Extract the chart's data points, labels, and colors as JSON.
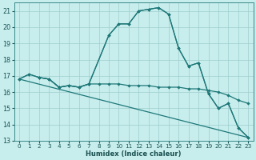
{
  "xlabel": "Humidex (Indice chaleur)",
  "xlim": [
    -0.5,
    23.5
  ],
  "ylim": [
    13,
    21.5
  ],
  "yticks": [
    13,
    14,
    15,
    16,
    17,
    18,
    19,
    20,
    21
  ],
  "xticks": [
    0,
    1,
    2,
    3,
    4,
    5,
    6,
    7,
    8,
    9,
    10,
    11,
    12,
    13,
    14,
    15,
    16,
    17,
    18,
    19,
    20,
    21,
    22,
    23
  ],
  "background_color": "#c8eded",
  "grid_color": "#9ecece",
  "line_color": "#1e7878",
  "series": [
    {
      "x": [
        0,
        1,
        2,
        3,
        4,
        5,
        6,
        7,
        9,
        10,
        11,
        12,
        13,
        14,
        15,
        16,
        17,
        18,
        19,
        20,
        21,
        22,
        23
      ],
      "y": [
        16.8,
        17.1,
        16.9,
        16.8,
        16.3,
        16.4,
        16.3,
        16.5,
        19.5,
        20.2,
        20.2,
        21.0,
        21.1,
        21.2,
        20.8,
        18.7,
        17.6,
        17.8,
        15.9,
        15.0,
        15.3,
        13.8,
        13.2
      ],
      "marker": true
    },
    {
      "x": [
        0,
        1,
        2,
        3,
        4,
        5,
        6,
        7,
        8,
        9,
        10,
        11,
        12,
        13,
        14,
        15,
        16,
        17,
        18,
        19,
        20,
        21,
        22,
        23
      ],
      "y": [
        16.8,
        17.1,
        16.9,
        16.8,
        16.3,
        16.4,
        16.3,
        16.5,
        16.5,
        16.5,
        16.5,
        16.4,
        16.4,
        16.4,
        16.3,
        16.3,
        16.3,
        16.2,
        16.2,
        16.1,
        16.0,
        15.8,
        15.5,
        15.3
      ],
      "marker": true
    },
    {
      "x": [
        0,
        23
      ],
      "y": [
        16.8,
        13.2
      ],
      "marker": false
    },
    {
      "x": [
        2,
        3,
        4,
        5,
        6,
        7,
        9,
        10,
        11,
        12,
        13,
        14,
        15,
        16,
        17,
        18,
        19,
        20,
        21,
        22,
        23
      ],
      "y": [
        16.9,
        16.8,
        16.3,
        16.4,
        16.3,
        16.5,
        19.5,
        20.2,
        20.2,
        21.0,
        21.1,
        21.2,
        20.8,
        18.7,
        17.6,
        17.8,
        15.9,
        15.0,
        15.3,
        13.8,
        13.2
      ],
      "marker": true
    }
  ]
}
